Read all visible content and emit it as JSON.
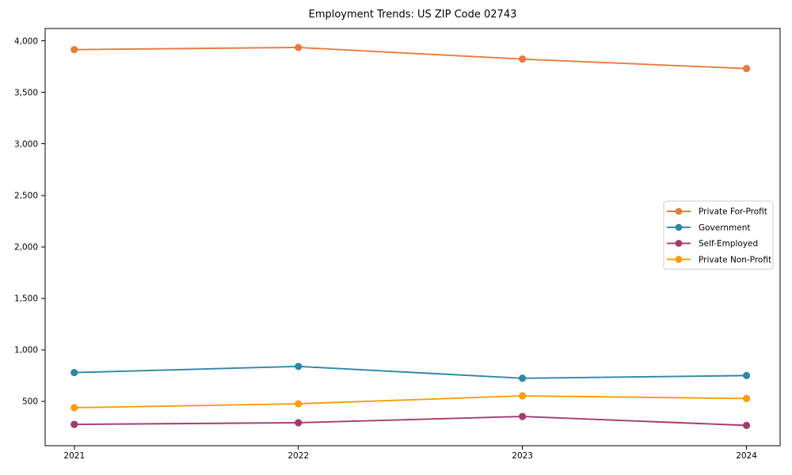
{
  "figure": {
    "background": "#ffffff"
  },
  "chart_data": {
    "type": "line",
    "title": "Employment Trends: US ZIP Code 02743",
    "x": [
      2021,
      2022,
      2023,
      2024
    ],
    "series": [
      {
        "name": "Private For-Profit",
        "color": "#E87A3F",
        "values": [
          3915,
          3936,
          3823,
          3731
        ]
      },
      {
        "name": "Government",
        "color": "#2F86A6",
        "values": [
          780,
          840,
          725,
          751
        ]
      },
      {
        "name": "Self-Employed",
        "color": "#A23B72",
        "values": [
          277,
          293,
          354,
          267
        ]
      },
      {
        "name": "Private Non-Profit",
        "color": "#F59E0B",
        "values": [
          439,
          477,
          554,
          528
        ]
      }
    ],
    "yticks": [
      500,
      1000,
      1500,
      2000,
      2500,
      3000,
      3500,
      4000
    ],
    "ylim": [
      70,
      4120
    ],
    "xlim": [
      2020.87,
      2024.15
    ],
    "grid": false,
    "legend": {
      "position": "center right",
      "border_color": "#cccccc",
      "background": "#ffffff"
    },
    "axis_color": "#000000",
    "tick_label_color": "#000000"
  }
}
